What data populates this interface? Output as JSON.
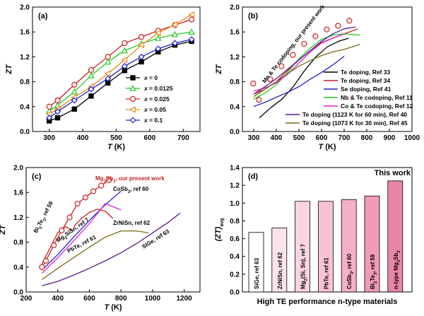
{
  "chart_data": [
    {
      "panel": "(a)",
      "type": "line",
      "xlabel": "T (K)",
      "ylabel": "ZT",
      "xlim": [
        250,
        750
      ],
      "ylim": [
        0.0,
        2.0
      ],
      "xticks": [
        300,
        400,
        500,
        600,
        700
      ],
      "yticks": [
        0.0,
        0.4,
        0.8,
        1.2,
        1.6,
        2.0
      ],
      "legend": "bottom-right",
      "series": [
        {
          "name": "x = 0",
          "color": "#000000",
          "marker": "square-filled",
          "x": [
            300,
            325,
            375,
            425,
            475,
            525,
            575,
            625,
            675,
            725
          ],
          "y": [
            0.17,
            0.22,
            0.36,
            0.57,
            0.78,
            0.98,
            1.12,
            1.28,
            1.39,
            1.45
          ]
        },
        {
          "name": "x = 0.0125",
          "color": "#22cc22",
          "marker": "triangle-open",
          "x": [
            300,
            325,
            375,
            425,
            475,
            525,
            575,
            625,
            675,
            725
          ],
          "y": [
            0.33,
            0.42,
            0.64,
            0.9,
            1.12,
            1.3,
            1.41,
            1.5,
            1.56,
            1.6
          ]
        },
        {
          "name": "x = 0.025",
          "color": "#cc2020",
          "marker": "circle-open",
          "x": [
            300,
            325,
            375,
            425,
            475,
            525,
            575,
            625,
            675,
            725
          ],
          "y": [
            0.4,
            0.5,
            0.75,
            0.99,
            1.2,
            1.42,
            1.52,
            1.62,
            1.71,
            1.8
          ]
        },
        {
          "name": "x = 0.05",
          "color": "#e88a20",
          "marker": "triangle-left-open",
          "x": [
            300,
            325,
            375,
            425,
            475,
            525,
            575,
            625,
            675,
            725
          ],
          "y": [
            0.28,
            0.36,
            0.55,
            0.72,
            0.93,
            1.15,
            1.39,
            1.58,
            1.72,
            1.88
          ]
        },
        {
          "name": "x = 0.1",
          "color": "#2020cc",
          "marker": "diamond-open",
          "x": [
            300,
            325,
            375,
            425,
            475,
            525,
            575,
            625,
            675,
            725
          ],
          "y": [
            0.22,
            0.32,
            0.5,
            0.68,
            0.85,
            1.05,
            1.2,
            1.33,
            1.42,
            1.48
          ]
        }
      ]
    },
    {
      "panel": "(b)",
      "type": "line",
      "xlabel": "T (K)",
      "ylabel": "ZT",
      "xlim": [
        250,
        1000
      ],
      "ylim": [
        0.0,
        2.0
      ],
      "xticks": [
        300,
        400,
        500,
        600,
        700,
        800,
        900,
        1000
      ],
      "yticks": [
        0.0,
        0.4,
        0.8,
        1.2,
        1.6,
        2.0
      ],
      "legend": "bottom-right",
      "annotation": "Mn & Te codoping, our present work",
      "markers": {
        "color": "#cc2020",
        "marker": "circle-open",
        "x": [
          298,
          323,
          373,
          423,
          473,
          523,
          573,
          623,
          673,
          723
        ],
        "y": [
          0.77,
          0.51,
          0.84,
          1.05,
          1.23,
          1.41,
          1.53,
          1.64,
          1.7,
          1.78
        ]
      },
      "series": [
        {
          "name": "Te doping, Ref 33",
          "color": "#000000",
          "x": [
            325,
            375,
            425,
            475,
            525,
            575,
            625,
            675,
            720
          ],
          "y": [
            0.22,
            0.38,
            0.52,
            0.72,
            0.98,
            1.2,
            1.36,
            1.45,
            1.5
          ]
        },
        {
          "name": "Te doping, Ref 34",
          "color": "#cc2020",
          "x": [
            300,
            350,
            400,
            450,
            500,
            550,
            600,
            650,
            700,
            760
          ],
          "y": [
            0.6,
            0.68,
            0.8,
            0.98,
            1.15,
            1.3,
            1.43,
            1.5,
            1.57,
            1.65
          ]
        },
        {
          "name": "Se doping, Ref 41",
          "color": "#2020cc",
          "x": [
            300,
            350,
            400,
            450,
            500,
            550,
            600,
            650,
            700
          ],
          "y": [
            0.4,
            0.47,
            0.55,
            0.63,
            0.72,
            0.84,
            0.95,
            1.07,
            1.21
          ]
        },
        {
          "name": "Nb & Te codoping, Ref 11",
          "color": "#22cc22",
          "x": [
            300,
            350,
            400,
            450,
            500,
            550,
            600,
            650,
            700,
            770
          ],
          "y": [
            0.52,
            0.62,
            0.75,
            0.95,
            1.17,
            1.34,
            1.48,
            1.55,
            1.57,
            1.55
          ]
        },
        {
          "name": "Co & Te codoping, Ref 12",
          "color": "#dd22dd",
          "x": [
            300,
            350,
            400,
            450,
            500,
            550,
            600,
            650,
            700
          ],
          "y": [
            0.65,
            0.7,
            0.78,
            0.92,
            1.1,
            1.28,
            1.42,
            1.5,
            1.57
          ]
        },
        {
          "name": "Te doping (1123 K for 60 min), Ref 40",
          "color": "#5a1a8a",
          "x": [
            300,
            350,
            400,
            450,
            500,
            550,
            600,
            650,
            700,
            750
          ],
          "y": [
            0.6,
            0.72,
            0.85,
            1.0,
            1.15,
            1.3,
            1.45,
            1.57,
            1.65,
            1.68
          ]
        },
        {
          "name": "Te doping (1073 K for 30 min), Ref 45",
          "color": "#7a6a10",
          "x": [
            300,
            350,
            400,
            450,
            500,
            550,
            600,
            650,
            700,
            770
          ],
          "y": [
            0.56,
            0.68,
            0.8,
            0.93,
            1.05,
            1.14,
            1.22,
            1.28,
            1.32,
            1.4
          ]
        }
      ]
    },
    {
      "panel": "(c)",
      "type": "line",
      "xlabel": "T (K)",
      "ylabel": "ZT",
      "xlim": [
        200,
        1300
      ],
      "ylim": [
        0.0,
        2.0
      ],
      "xticks": [
        200,
        400,
        600,
        800,
        1000,
        1200
      ],
      "yticks": [
        0.0,
        0.4,
        0.8,
        1.2,
        1.6,
        2.0
      ],
      "markers": {
        "color": "#cc2020",
        "marker": "circle-open",
        "x": [
          300,
          325,
          375,
          425,
          475,
          525,
          575,
          625,
          675,
          725
        ],
        "y": [
          0.4,
          0.5,
          0.75,
          0.99,
          1.2,
          1.42,
          1.52,
          1.62,
          1.71,
          1.8
        ]
      },
      "series": [
        {
          "name": "Mg3Sb2, our present work",
          "color": "#cc2020",
          "x": [
            300,
            325,
            375,
            425,
            475,
            525,
            575,
            625,
            675,
            725
          ],
          "y": [
            0.4,
            0.5,
            0.75,
            0.99,
            1.2,
            1.42,
            1.52,
            1.62,
            1.71,
            1.8
          ]
        },
        {
          "name": "Bi2Te3, ref 59",
          "color": "#cc2020",
          "x": [
            300,
            350,
            400,
            450,
            500
          ],
          "y": [
            0.45,
            0.7,
            0.95,
            1.05,
            0.98
          ]
        },
        {
          "name": "Mg2SiSn, ref 7",
          "color": "#cc2020",
          "x": [
            500,
            550,
            600,
            650,
            700,
            750
          ],
          "y": [
            1.05,
            1.18,
            1.28,
            1.33,
            1.3,
            1.18
          ]
        },
        {
          "name": "CoSb3, ref 60",
          "color": "#2020cc",
          "x": [
            300,
            400,
            500,
            600,
            700,
            800
          ],
          "y": [
            0.35,
            0.6,
            0.88,
            1.15,
            1.4,
            1.62
          ]
        },
        {
          "name": "PbTe, ref 61",
          "color": "#dd22dd",
          "x": [
            300,
            400,
            500,
            600,
            700,
            800
          ],
          "y": [
            0.3,
            0.55,
            0.82,
            1.1,
            1.42,
            1.32
          ]
        },
        {
          "name": "ZrNiSn, ref 62",
          "color": "#7a6a10",
          "x": [
            300,
            400,
            500,
            600,
            700,
            800,
            900,
            975
          ],
          "y": [
            0.2,
            0.38,
            0.55,
            0.72,
            0.88,
            0.98,
            0.98,
            0.95
          ]
        },
        {
          "name": "SiGe, ref 63",
          "color": "#5a1a8a",
          "x": [
            300,
            400,
            500,
            600,
            700,
            800,
            900,
            1000,
            1100,
            1175
          ],
          "y": [
            0.1,
            0.17,
            0.27,
            0.38,
            0.5,
            0.63,
            0.78,
            0.95,
            1.12,
            1.27
          ]
        }
      ]
    },
    {
      "panel": "(d)",
      "type": "bar",
      "xlabel": "High TE performance n-type materials",
      "ylabel": "(ZT)avg",
      "ylim": [
        0.0,
        1.4
      ],
      "yticks": [
        0.0,
        0.2,
        0.4,
        0.6,
        0.8,
        1.0,
        1.2,
        1.4
      ],
      "annotation": "This work",
      "categories": [
        "SiGe, ref 63",
        "ZrNiSn, ref 62",
        "Mg2(Si, Sn), ref 7",
        "PbTe, ref 61",
        "CoSb3, ref 60",
        "Bi2Te3, ref 59",
        "n-type Mg3Sb2"
      ],
      "values": [
        0.67,
        0.72,
        1.02,
        1.02,
        1.04,
        1.08,
        1.25
      ],
      "colors": [
        "#ffffff",
        "#fde4ec",
        "#fbd3e1",
        "#f8c2d4",
        "#f5afc6",
        "#f09ab6",
        "#ea85a6"
      ]
    }
  ]
}
